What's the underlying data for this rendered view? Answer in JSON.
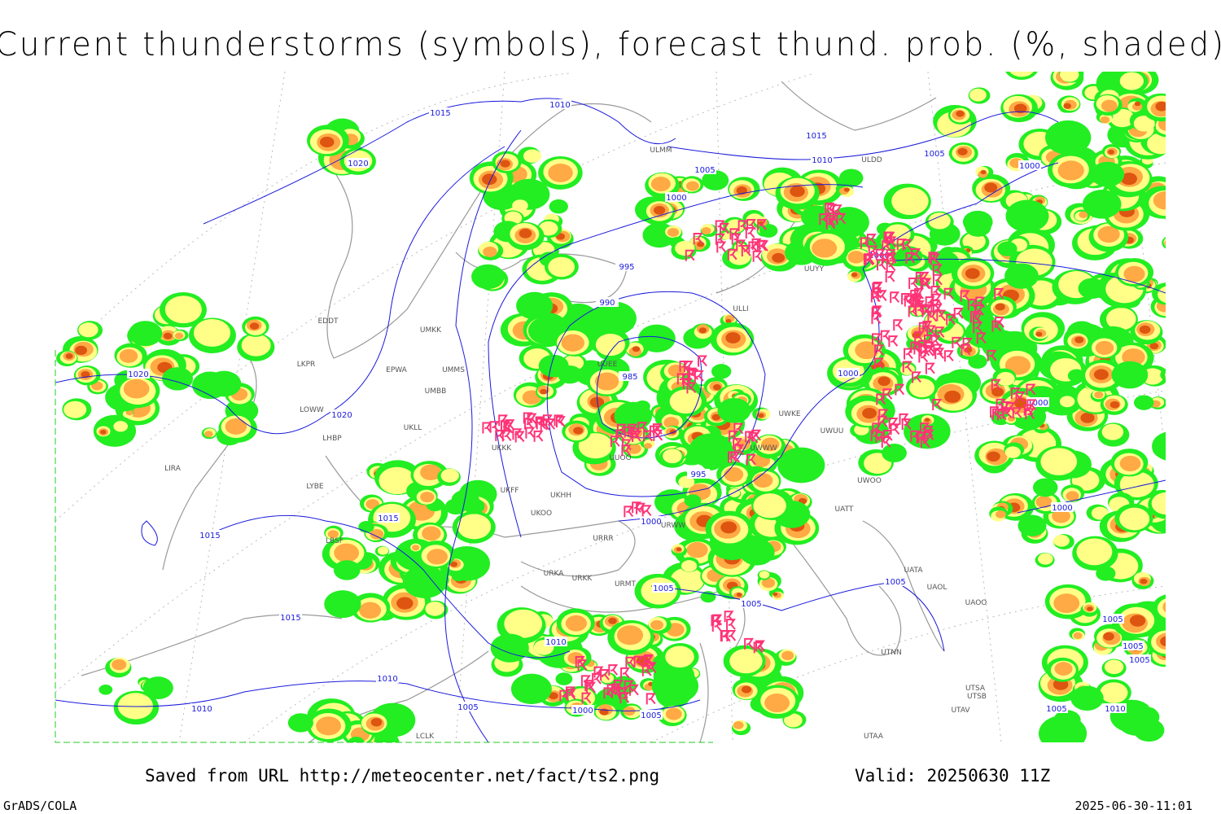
{
  "title": "Current thunderstorms (symbols), forecast thund. prob. (%, shaded)",
  "footer": {
    "source": "Saved from URL http://meteocenter.net/fact/ts2.png",
    "valid": "Valid: 20250630 11Z",
    "software": "GrADS/COLA",
    "timestamp": "2025-06-30-11:01"
  },
  "map": {
    "isobar_labels": [
      1015,
      1010,
      1020,
      1015,
      1010,
      1005,
      1000,
      1005,
      1000,
      995,
      1000,
      990,
      985,
      1020,
      1020,
      1000,
      1000,
      995,
      1015,
      1000,
      1000,
      1015,
      1005,
      1005,
      1005,
      1015,
      1010,
      1010,
      1005,
      1000,
      1005,
      1010,
      1005,
      1005,
      1005,
      1005,
      1010
    ],
    "stations": [
      "ULMM",
      "ULDD",
      "EDDT",
      "EPWA",
      "LKPR",
      "LOWW",
      "LHBP",
      "LIRA",
      "LYBE",
      "LBSF",
      "UMKK",
      "UMMS",
      "UMBB",
      "UKLL",
      "UKKK",
      "UKHH",
      "UUOO",
      "UUEE",
      "ULLI",
      "UUYY",
      "UWKE",
      "UWUU",
      "UWOO",
      "UATT",
      "UWWW",
      "URWW",
      "URRR",
      "UKFF",
      "UKOO",
      "URKA",
      "URKK",
      "URMT",
      "UATA",
      "UAOL",
      "UAOO",
      "UTNN",
      "UTSA",
      "UTSB",
      "UTAV",
      "UTAA",
      "LCLK"
    ]
  }
}
